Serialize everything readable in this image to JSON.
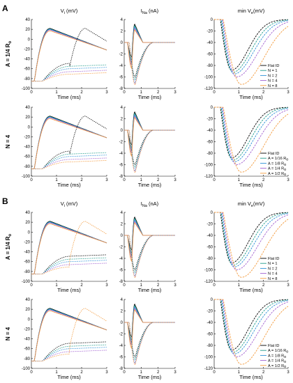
{
  "figure": {
    "panels": [
      {
        "letter": "A",
        "rows": [
          {
            "label_main": "A = 1/4 R",
            "label_sub": "o"
          },
          {
            "label_main": "N = 4",
            "label_sub": ""
          }
        ]
      },
      {
        "letter": "B",
        "rows": [
          {
            "label_main": "A = 1/4 R",
            "label_sub": "o"
          },
          {
            "label_main": "N = 4",
            "label_sub": ""
          }
        ]
      }
    ],
    "columns": [
      {
        "title_main": "V",
        "title_sub": "i",
        "title_rest": " (mV)"
      },
      {
        "title_main": "I",
        "title_sub": "Na",
        "title_rest": " (nA)"
      },
      {
        "title_main": "min V",
        "title_sub": "e",
        "title_rest": "(mV)"
      }
    ],
    "xlabel": "Time (ms)",
    "legend_n": [
      "Flat ID",
      "N = 1",
      "N = 2",
      "N = 4",
      "N = 8"
    ],
    "legend_a": [
      "Flat ID",
      "A = 1/16 R",
      "A = 1/8 R",
      "A = 1/4 R",
      "A = 1/2 R"
    ],
    "legend_a_sub": "o",
    "colors": {
      "flat": "#000000",
      "c1": "#1f9c8c",
      "c2": "#2a8fd6",
      "c3": "#a05fd0",
      "c4": "#f39a3c"
    }
  },
  "chart_data": [
    {
      "id": "vi",
      "type": "line",
      "x_range": [
        0,
        3
      ],
      "y_range": [
        -100,
        40
      ],
      "x_ticks": [
        0,
        1,
        2,
        3
      ],
      "y_ticks": [
        40,
        20,
        0,
        -20,
        -40,
        -60,
        -80,
        -100
      ],
      "series_solid_peaks": [
        22,
        21,
        20,
        19,
        17
      ],
      "series_dotted_levels": [
        -49,
        -55,
        -60,
        -66,
        -71
      ]
    },
    {
      "id": "ina",
      "type": "line",
      "x_range": [
        0,
        3
      ],
      "y_range": [
        -8,
        4
      ],
      "x_ticks": [
        0,
        1,
        2,
        3
      ],
      "y_ticks": [
        4,
        2,
        0,
        -2,
        -4,
        -6,
        -8
      ],
      "solid_troughs": [
        -2.5,
        -3.0,
        -3.5,
        -4.0,
        -4.5
      ],
      "dotted_troughs": [
        -6.0,
        -6.5,
        -7.0,
        -7.2,
        -7.4
      ]
    },
    {
      "id": "minve",
      "type": "line",
      "x_range": [
        0,
        3
      ],
      "y_range": [
        -120,
        0
      ],
      "x_ticks": [
        0,
        1,
        2,
        3
      ],
      "y_ticks": [
        0,
        -20,
        -40,
        -60,
        -80,
        -100,
        -120
      ],
      "minima": [
        -88,
        -92,
        -95,
        -100,
        -113
      ],
      "minima_time_ms": [
        0.7,
        0.75,
        0.8,
        0.9,
        1.1
      ]
    }
  ]
}
